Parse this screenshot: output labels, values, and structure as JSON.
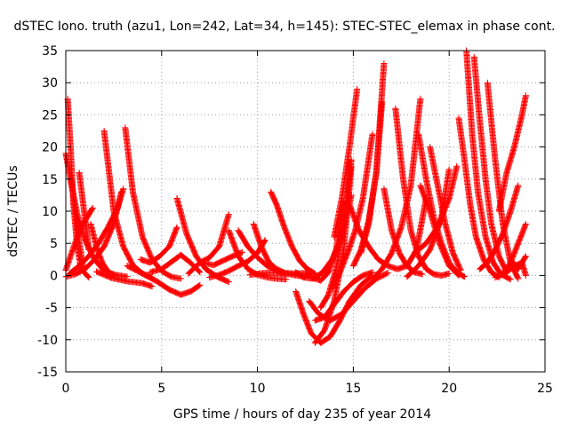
{
  "chart_data": {
    "type": "scatter",
    "title": "dSTEC Iono. truth (azu1, Lon=242, Lat=34, h=145): STEC-STEC_elemax in phase cont.",
    "xlabel": "GPS time / hours of day 235 of year 2014",
    "ylabel": "dSTEC  / TECUs",
    "xlim": [
      0,
      25
    ],
    "ylim": [
      -15,
      35
    ],
    "xticks": [
      "0",
      "5",
      "10",
      "15",
      "20",
      "25"
    ],
    "yticks": [
      "-15",
      "-10",
      "-5",
      "0",
      "5",
      "10",
      "15",
      "20",
      "25",
      "30",
      "35"
    ],
    "grid": true,
    "marker": "+",
    "color": "#ff0000",
    "series": [
      {
        "x": [
          0.0,
          0.3,
          0.6,
          1.0,
          1.5,
          2.0,
          2.6,
          3.2
        ],
        "y": [
          19.0,
          14.0,
          9.5,
          5.5,
          2.5,
          0.7,
          0.1,
          -0.2
        ]
      },
      {
        "x": [
          0.1,
          0.25,
          0.4,
          0.6,
          0.8,
          1.2
        ],
        "y": [
          27.5,
          20.0,
          11.0,
          4.5,
          1.0,
          -0.3
        ]
      },
      {
        "x": [
          0.3,
          0.6,
          0.9
        ],
        "y": [
          15.0,
          7.0,
          1.5
        ]
      },
      {
        "x": [
          0.7,
          1.0,
          1.2
        ],
        "y": [
          16.0,
          9.0,
          4.0
        ]
      },
      {
        "x": [
          0.0,
          0.3,
          0.6,
          0.9,
          1.2,
          1.4
        ],
        "y": [
          0.8,
          3.5,
          6.0,
          8.0,
          9.5,
          10.5
        ]
      },
      {
        "x": [
          0.0,
          0.5,
          1.0,
          1.5,
          2.0,
          2.5,
          2.9
        ],
        "y": [
          -0.2,
          0.2,
          1.0,
          2.5,
          4.5,
          8.0,
          13.0
        ]
      },
      {
        "x": [
          0.2,
          0.7,
          1.2,
          1.7,
          2.2,
          2.7,
          3.0
        ],
        "y": [
          0.3,
          1.5,
          3.0,
          5.0,
          7.5,
          10.5,
          13.5
        ]
      },
      {
        "x": [
          1.3,
          1.6,
          1.9,
          2.2,
          2.5
        ],
        "y": [
          8.0,
          4.5,
          2.0,
          0.6,
          0.0
        ]
      },
      {
        "x": [
          2.0,
          2.5,
          3.0,
          3.5,
          4.0,
          4.5
        ],
        "y": [
          22.5,
          10.0,
          4.5,
          1.6,
          0.3,
          -0.3
        ]
      },
      {
        "x": [
          3.1,
          3.5,
          4.0,
          4.5,
          5.0,
          5.5,
          6.0
        ],
        "y": [
          23.0,
          13.0,
          6.0,
          2.5,
          0.7,
          -0.2,
          -0.5
        ]
      },
      {
        "x": [
          1.6,
          2.4,
          3.2,
          4.0,
          4.5
        ],
        "y": [
          0.6,
          -0.4,
          -0.9,
          -1.2,
          -1.7
        ]
      },
      {
        "x": [
          3.2,
          4.0,
          4.8,
          5.4,
          6.0,
          6.5,
          7.0
        ],
        "y": [
          1.5,
          0.3,
          -1.0,
          -2.2,
          -3.0,
          -2.5,
          -1.5
        ]
      },
      {
        "x": [
          3.9,
          4.4,
          4.9,
          5.4,
          5.8
        ],
        "y": [
          2.5,
          2.0,
          3.0,
          4.5,
          7.5
        ]
      },
      {
        "x": [
          4.4,
          5.0,
          5.6,
          6.0,
          6.5,
          7.0
        ],
        "y": [
          0.5,
          1.0,
          2.3,
          3.2,
          2.0,
          0.5
        ]
      },
      {
        "x": [
          5.8,
          6.3,
          6.8,
          7.3,
          7.9,
          8.5
        ],
        "y": [
          12.0,
          6.5,
          3.0,
          1.0,
          -0.2,
          -1.0
        ]
      },
      {
        "x": [
          6.4,
          7.0,
          7.5,
          8.0,
          8.5
        ],
        "y": [
          0.3,
          2.0,
          2.8,
          4.5,
          9.5
        ]
      },
      {
        "x": [
          7.2,
          7.7,
          8.2,
          8.7,
          9.2
        ],
        "y": [
          2.0,
          1.6,
          2.3,
          3.0,
          3.6
        ]
      },
      {
        "x": [
          7.5,
          8.0,
          8.5,
          9.0,
          9.5,
          10.0,
          10.4
        ],
        "y": [
          -0.3,
          0.1,
          0.7,
          1.5,
          2.2,
          3.5,
          5.5
        ]
      },
      {
        "x": [
          8.5,
          9.0,
          9.5,
          10.0,
          10.5,
          11.0,
          11.5
        ],
        "y": [
          7.0,
          3.0,
          1.0,
          0.1,
          -0.3,
          -0.5,
          -0.6
        ]
      },
      {
        "x": [
          9.0,
          9.5,
          10.0,
          10.5,
          11.0,
          11.5
        ],
        "y": [
          7.0,
          4.5,
          2.8,
          1.5,
          0.7,
          0.2
        ]
      },
      {
        "x": [
          9.8,
          10.2,
          10.6,
          11.0,
          11.5,
          12.0,
          12.5
        ],
        "y": [
          8.0,
          4.5,
          2.0,
          1.0,
          0.3,
          0.0,
          -0.2
        ]
      },
      {
        "x": [
          10.7,
          11.0,
          11.4,
          11.8,
          12.2,
          12.6,
          13.0
        ],
        "y": [
          13.0,
          11.0,
          7.5,
          4.5,
          2.3,
          1.0,
          0.3
        ]
      },
      {
        "x": [
          9.6,
          10.4,
          11.2,
          12.0,
          12.8
        ],
        "y": [
          0.1,
          0.4,
          0.4,
          0.3,
          0.4
        ]
      },
      {
        "x": [
          12.0,
          12.4,
          12.9,
          13.4,
          13.9,
          14.4,
          14.9
        ],
        "y": [
          0.5,
          -0.3,
          -0.5,
          0.5,
          2.5,
          6.0,
          12.5
        ]
      },
      {
        "x": [
          12.5,
          12.9,
          13.3,
          13.7,
          14.1,
          14.5
        ],
        "y": [
          0.3,
          -0.4,
          -0.8,
          0.5,
          4.0,
          11.5
        ]
      },
      {
        "x": [
          12.0,
          12.4,
          12.8,
          13.3,
          13.8,
          14.3,
          14.8,
          15.4,
          16.0
        ],
        "y": [
          -2.5,
          -6.0,
          -9.0,
          -10.5,
          -9.5,
          -7.0,
          -4.0,
          -1.5,
          0.0
        ]
      },
      {
        "x": [
          12.7,
          13.2,
          13.8,
          14.4,
          15.0,
          15.6,
          16.2,
          16.8
        ],
        "y": [
          -4.0,
          -6.0,
          -7.0,
          -6.0,
          -4.0,
          -2.0,
          -0.5,
          0.4
        ]
      },
      {
        "x": [
          13.0,
          13.5,
          14.0,
          14.5,
          15.0,
          15.5,
          16.0
        ],
        "y": [
          -7.0,
          -6.5,
          -4.5,
          -2.5,
          -1.0,
          0.0,
          0.5
        ]
      },
      {
        "x": [
          13.3,
          13.7,
          14.1,
          14.5,
          14.9
        ],
        "y": [
          -5.0,
          -3.0,
          1.0,
          8.0,
          18.0
        ]
      },
      {
        "x": [
          13.0,
          13.5,
          14.0,
          14.5,
          14.9
        ],
        "y": [
          -10.5,
          -8.5,
          -4.0,
          4.0,
          17.0
        ]
      },
      {
        "x": [
          13.9,
          14.3,
          14.7,
          15.1,
          15.5,
          16.0
        ],
        "y": [
          -2.0,
          0.5,
          3.5,
          7.0,
          12.0,
          22.0
        ]
      },
      {
        "x": [
          14.0,
          14.4,
          14.8,
          15.2
        ],
        "y": [
          6.0,
          12.0,
          20.0,
          29.0
        ]
      },
      {
        "x": [
          15.0,
          15.4,
          15.8,
          16.2,
          16.5
        ],
        "y": [
          1.5,
          4.0,
          8.5,
          16.0,
          27.0
        ]
      },
      {
        "x": [
          15.4,
          15.8,
          16.2,
          16.6
        ],
        "y": [
          3.5,
          8.0,
          16.0,
          33.0
        ]
      },
      {
        "x": [
          14.8,
          15.3,
          15.8,
          16.3,
          16.8,
          17.3,
          17.8,
          18.3,
          18.8
        ],
        "y": [
          11.0,
          7.0,
          4.5,
          2.5,
          1.5,
          1.0,
          1.5,
          4.0,
          12.0
        ]
      },
      {
        "x": [
          16.0,
          16.5,
          17.0,
          17.5,
          18.0,
          18.5
        ],
        "y": [
          -0.5,
          1.0,
          3.5,
          7.5,
          14.0,
          27.5
        ]
      },
      {
        "x": [
          16.6,
          17.0,
          17.4,
          17.8,
          18.2,
          18.6
        ],
        "y": [
          13.5,
          7.0,
          3.5,
          1.5,
          0.5,
          0.2
        ]
      },
      {
        "x": [
          17.2,
          17.6,
          18.0,
          18.4,
          18.8,
          19.2,
          19.6,
          20.0
        ],
        "y": [
          26.0,
          15.0,
          7.0,
          3.0,
          1.0,
          0.2,
          0.0,
          0.3
        ]
      },
      {
        "x": [
          18.4,
          18.8,
          19.2,
          19.6,
          20.0,
          20.4,
          20.8
        ],
        "y": [
          22.0,
          15.0,
          9.0,
          5.0,
          2.0,
          0.5,
          -0.2
        ]
      },
      {
        "x": [
          18.5,
          19.0,
          19.5,
          20.0,
          20.5
        ],
        "y": [
          14.0,
          10.0,
          5.0,
          1.5,
          0.0
        ]
      },
      {
        "x": [
          19.0,
          19.4,
          19.8,
          20.2,
          20.6
        ],
        "y": [
          20.0,
          14.0,
          8.0,
          3.5,
          0.8
        ]
      },
      {
        "x": [
          17.8,
          18.4,
          19.0,
          19.6,
          20.0
        ],
        "y": [
          -0.2,
          1.5,
          4.0,
          9.0,
          16.5
        ]
      },
      {
        "x": [
          18.2,
          18.8,
          19.4,
          20.0,
          20.4
        ],
        "y": [
          3.5,
          5.0,
          7.5,
          12.0,
          17.0
        ]
      },
      {
        "x": [
          20.5,
          20.8,
          21.1,
          21.4,
          21.8,
          22.2,
          22.6
        ],
        "y": [
          24.5,
          18.0,
          11.0,
          6.0,
          2.5,
          0.5,
          -0.3
        ]
      },
      {
        "x": [
          20.9,
          21.2,
          21.5,
          21.9,
          22.3,
          22.7,
          23.2
        ],
        "y": [
          35.0,
          22.0,
          13.0,
          6.0,
          2.0,
          0.2,
          -0.6
        ]
      },
      {
        "x": [
          21.3,
          21.6,
          21.9,
          22.2,
          22.6,
          23.0
        ],
        "y": [
          34.0,
          24.0,
          15.0,
          8.0,
          3.0,
          0.5
        ]
      },
      {
        "x": [
          22.0,
          22.4,
          22.8,
          23.2,
          23.6
        ],
        "y": [
          30.0,
          18.0,
          8.0,
          2.0,
          -0.5
        ]
      },
      {
        "x": [
          21.6,
          22.0,
          22.4,
          22.8,
          23.2,
          23.6
        ],
        "y": [
          1.0,
          2.0,
          4.0,
          6.5,
          10.0,
          14.0
        ]
      },
      {
        "x": [
          22.4,
          22.8,
          23.2,
          23.6,
          24.0
        ],
        "y": [
          -0.3,
          0.2,
          2.0,
          5.0,
          8.0
        ]
      },
      {
        "x": [
          22.6,
          23.0,
          23.4,
          23.8,
          24.0
        ],
        "y": [
          10.0,
          16.0,
          20.0,
          25.0,
          28.0
        ]
      },
      {
        "x": [
          23.2,
          23.6,
          24.0
        ],
        "y": [
          2.5,
          1.0,
          3.0
        ]
      },
      {
        "x": [
          23.0,
          23.4,
          23.8,
          24.0
        ],
        "y": [
          0.5,
          1.5,
          2.0,
          0.0
        ]
      }
    ]
  }
}
